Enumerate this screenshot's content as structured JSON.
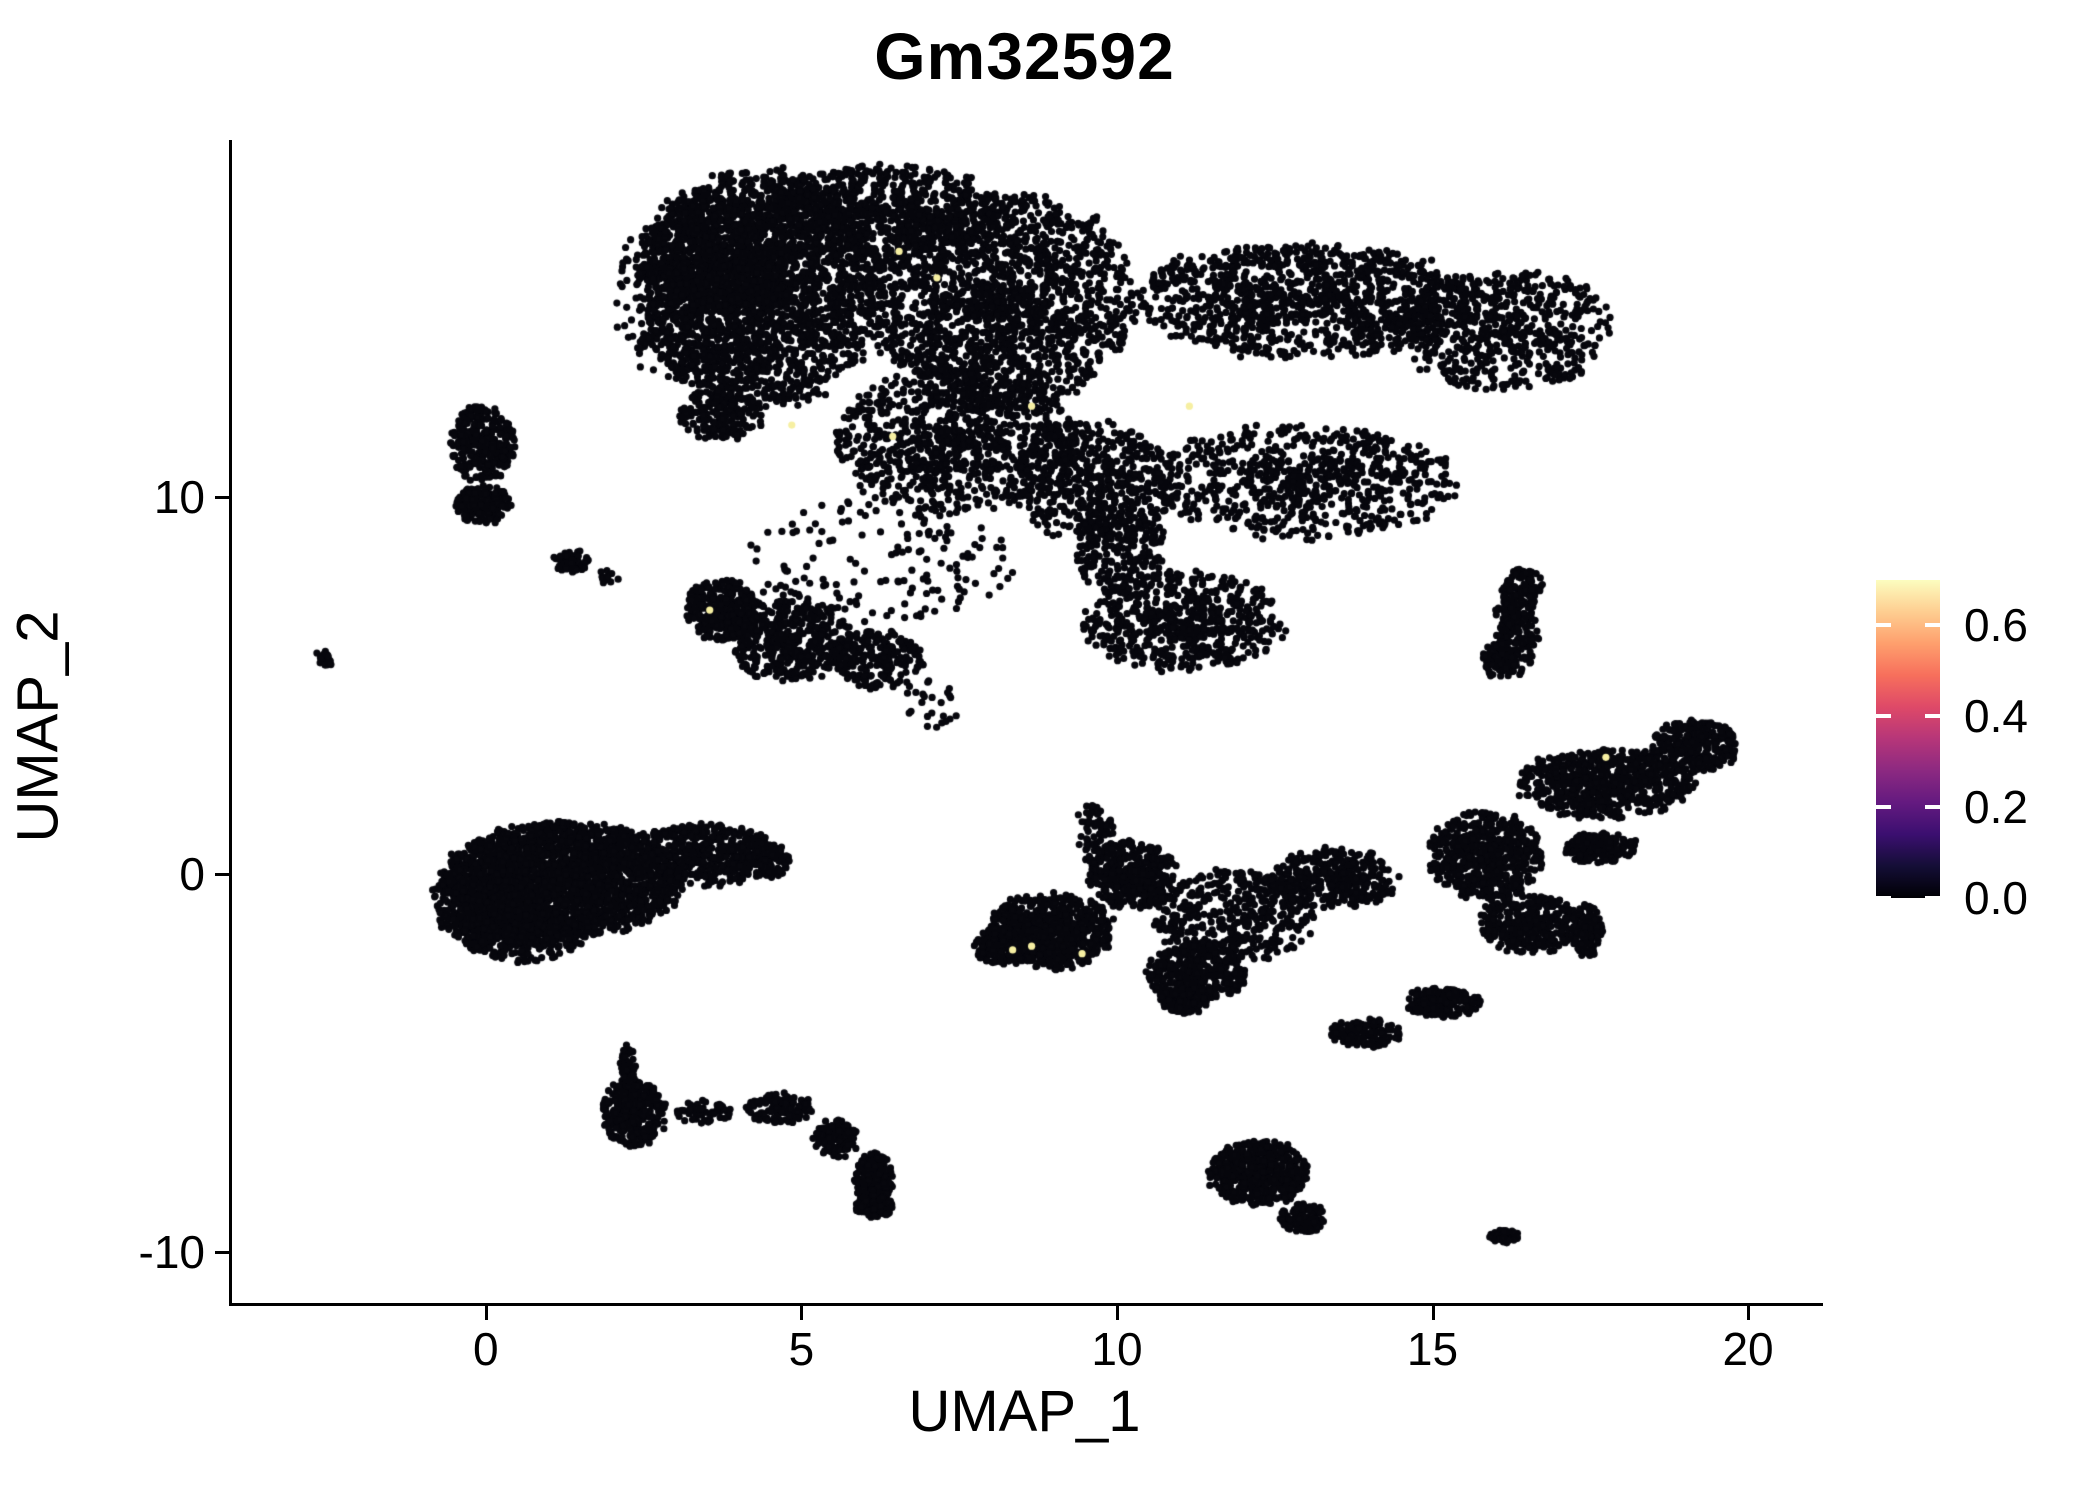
{
  "title": "Gm32592",
  "axes": {
    "x_label": "UMAP_1",
    "y_label": "UMAP_2"
  },
  "chart_data": {
    "type": "scatter",
    "title": "Gm32592",
    "xlabel": "UMAP_1",
    "ylabel": "UMAP_2",
    "xlim": [
      -4.07,
      21.14
    ],
    "ylim": [
      -11.35,
      19.45
    ],
    "x_ticks": [
      0,
      5,
      10,
      15,
      20
    ],
    "y_ticks": [
      10,
      0,
      -10
    ],
    "grid": false,
    "point_color_zero": "#07070d",
    "point_color_high": "#f6efa2",
    "legend": {
      "position": "right",
      "colormap": "magma",
      "range": [
        0.0,
        0.7
      ],
      "ticks": [
        0.0,
        0.2,
        0.4,
        0.6
      ],
      "tick_labels": [
        "0.0",
        "0.2",
        "0.4",
        "0.6"
      ],
      "stops": [
        {
          "v": 0.0,
          "color": "#000004"
        },
        {
          "v": 0.07,
          "color": "#140e36"
        },
        {
          "v": 0.14,
          "color": "#3b0f70"
        },
        {
          "v": 0.21,
          "color": "#641a80"
        },
        {
          "v": 0.28,
          "color": "#8c2981"
        },
        {
          "v": 0.35,
          "color": "#b63679"
        },
        {
          "v": 0.42,
          "color": "#de4968"
        },
        {
          "v": 0.49,
          "color": "#f76f5c"
        },
        {
          "v": 0.56,
          "color": "#fe9f6d"
        },
        {
          "v": 0.63,
          "color": "#fece91"
        },
        {
          "v": 0.7,
          "color": "#fcfdbf"
        }
      ]
    },
    "clusters": [
      {
        "name": "top-left-lobe-core",
        "x": 4.3,
        "y": 15.5,
        "rx": 1.9,
        "ry": 3.1,
        "n": 2600
      },
      {
        "name": "top-left-lobe-upper",
        "x": 3.4,
        "y": 16.5,
        "rx": 1.0,
        "ry": 1.6,
        "n": 500
      },
      {
        "name": "top-edge-band",
        "x": 6.2,
        "y": 17.6,
        "rx": 1.9,
        "ry": 1.2,
        "n": 700
      },
      {
        "name": "top-central-mass",
        "x": 8.1,
        "y": 15.2,
        "rx": 2.1,
        "ry": 2.9,
        "n": 1800
      },
      {
        "name": "top-lower-central",
        "x": 7.4,
        "y": 11.5,
        "rx": 1.9,
        "ry": 1.9,
        "n": 900
      },
      {
        "name": "top-lower-right",
        "x": 9.6,
        "y": 10.4,
        "rx": 1.3,
        "ry": 1.6,
        "n": 500
      },
      {
        "name": "top-right-band-upper",
        "x": 12.9,
        "y": 15.2,
        "rx": 2.7,
        "ry": 1.5,
        "n": 1100
      },
      {
        "name": "top-right-wedge-tip",
        "x": 16.1,
        "y": 14.4,
        "rx": 1.7,
        "ry": 1.6,
        "n": 600
      },
      {
        "name": "top-right-band-lower",
        "x": 12.9,
        "y": 10.4,
        "rx": 2.4,
        "ry": 1.5,
        "n": 700
      },
      {
        "name": "top-bottom-hook",
        "x": 11.0,
        "y": 6.7,
        "rx": 1.6,
        "ry": 1.3,
        "n": 600
      },
      {
        "name": "top-hook-neck",
        "x": 10.0,
        "y": 8.6,
        "rx": 0.7,
        "ry": 1.2,
        "n": 200
      },
      {
        "name": "top-left-protrusion",
        "x": 3.7,
        "y": 12.2,
        "rx": 0.7,
        "ry": 0.7,
        "n": 180
      },
      {
        "name": "top-left-fringe",
        "x": 2.7,
        "y": 15.2,
        "rx": 0.7,
        "ry": 2.0,
        "n": 120,
        "sparse": true
      },
      {
        "name": "top-bottom-fringe",
        "x": 6.2,
        "y": 8.3,
        "rx": 2.2,
        "ry": 1.6,
        "n": 160,
        "sparse": true
      },
      {
        "name": "right-squiggle-main",
        "x": 16.3,
        "y": 6.7,
        "rx": 0.35,
        "ry": 1.4,
        "n": 220
      },
      {
        "name": "right-squiggle-foot",
        "x": 16.0,
        "y": 5.7,
        "rx": 0.3,
        "ry": 0.5,
        "n": 80
      },
      {
        "name": "right-squiggle-head",
        "x": 16.4,
        "y": 7.7,
        "rx": 0.3,
        "ry": 0.4,
        "n": 60
      },
      {
        "name": "left-vertical-upper",
        "x": -0.1,
        "y": 11.4,
        "rx": 0.5,
        "ry": 1.0,
        "n": 320
      },
      {
        "name": "left-vertical-lower",
        "x": -0.1,
        "y": 9.8,
        "rx": 0.45,
        "ry": 0.5,
        "n": 180
      },
      {
        "name": "far-left-dash",
        "x": -2.6,
        "y": 5.7,
        "rx": 0.2,
        "ry": 0.2,
        "n": 25
      },
      {
        "name": "small-chain",
        "x": 1.3,
        "y": 8.3,
        "rx": 0.3,
        "ry": 0.3,
        "n": 60
      },
      {
        "name": "small-chain-tail",
        "x": 1.9,
        "y": 7.9,
        "rx": 0.2,
        "ry": 0.2,
        "n": 15
      },
      {
        "name": "mid-cluster-left",
        "x": 3.7,
        "y": 7.0,
        "rx": 0.6,
        "ry": 0.8,
        "n": 350
      },
      {
        "name": "mid-cluster-core",
        "x": 4.8,
        "y": 6.2,
        "rx": 1.0,
        "ry": 1.1,
        "n": 450
      },
      {
        "name": "mid-cluster-right",
        "x": 6.2,
        "y": 5.7,
        "rx": 0.7,
        "ry": 0.8,
        "n": 220
      },
      {
        "name": "mid-cluster-fringe",
        "x": 7.0,
        "y": 4.5,
        "rx": 0.5,
        "ry": 0.7,
        "n": 25,
        "sparse": true
      },
      {
        "name": "big-left-core",
        "x": 1.2,
        "y": -0.1,
        "rx": 1.9,
        "ry": 1.5,
        "n": 2200
      },
      {
        "name": "big-left-west",
        "x": -0.1,
        "y": -0.7,
        "rx": 0.8,
        "ry": 1.1,
        "n": 500
      },
      {
        "name": "big-left-arm",
        "x": 3.4,
        "y": 0.5,
        "rx": 1.3,
        "ry": 0.8,
        "n": 500
      },
      {
        "name": "big-left-arm-tip",
        "x": 4.3,
        "y": 0.4,
        "rx": 0.5,
        "ry": 0.5,
        "n": 150
      },
      {
        "name": "big-left-south",
        "x": 0.5,
        "y": -1.6,
        "rx": 1.0,
        "ry": 0.7,
        "n": 300
      },
      {
        "name": "bottom-left-round",
        "x": 2.3,
        "y": -6.3,
        "rx": 0.5,
        "ry": 0.9,
        "n": 380
      },
      {
        "name": "bottom-left-spike",
        "x": 2.2,
        "y": -5.1,
        "rx": 0.12,
        "ry": 0.6,
        "n": 50
      },
      {
        "name": "smile-sparse-start",
        "x": 3.4,
        "y": -6.3,
        "rx": 0.45,
        "ry": 0.3,
        "n": 60,
        "sparse": true
      },
      {
        "name": "smile-arc-1",
        "x": 4.6,
        "y": -6.2,
        "rx": 0.55,
        "ry": 0.4,
        "n": 120
      },
      {
        "name": "smile-arc-2",
        "x": 5.5,
        "y": -7.0,
        "rx": 0.4,
        "ry": 0.5,
        "n": 140
      },
      {
        "name": "smile-hook",
        "x": 6.1,
        "y": -8.1,
        "rx": 0.3,
        "ry": 0.75,
        "n": 220
      },
      {
        "name": "smile-hook-end",
        "x": 6.1,
        "y": -8.8,
        "rx": 0.3,
        "ry": 0.3,
        "n": 120
      },
      {
        "name": "ribbon-antenna",
        "x": 9.6,
        "y": 1.1,
        "rx": 0.3,
        "ry": 0.8,
        "n": 80
      },
      {
        "name": "ribbon-clump",
        "x": 10.2,
        "y": 0.0,
        "rx": 0.7,
        "ry": 0.9,
        "n": 400
      },
      {
        "name": "ribbon-left-wing",
        "x": 8.9,
        "y": -1.5,
        "rx": 1.0,
        "ry": 1.0,
        "n": 700
      },
      {
        "name": "ribbon-wing-tip",
        "x": 8.1,
        "y": -1.9,
        "rx": 0.4,
        "ry": 0.5,
        "n": 150
      },
      {
        "name": "ribbon-center-band",
        "x": 11.8,
        "y": -1.1,
        "rx": 1.3,
        "ry": 1.2,
        "n": 450,
        "sparse": true
      },
      {
        "name": "ribbon-bottom-clump",
        "x": 11.2,
        "y": -2.6,
        "rx": 0.8,
        "ry": 0.8,
        "n": 350
      },
      {
        "name": "ribbon-tail",
        "x": 11.0,
        "y": -3.3,
        "rx": 0.4,
        "ry": 0.4,
        "n": 120
      },
      {
        "name": "ribbon-bridge",
        "x": 13.4,
        "y": -0.1,
        "rx": 1.0,
        "ry": 0.8,
        "n": 350
      },
      {
        "name": "right-mass-top-arm",
        "x": 17.7,
        "y": 2.4,
        "rx": 1.4,
        "ry": 0.9,
        "n": 700
      },
      {
        "name": "right-mass-arm-tip",
        "x": 19.1,
        "y": 3.4,
        "rx": 0.7,
        "ry": 0.7,
        "n": 300
      },
      {
        "name": "right-mass-node",
        "x": 15.8,
        "y": 0.5,
        "rx": 0.9,
        "ry": 1.2,
        "n": 600
      },
      {
        "name": "right-mass-mid-arm",
        "x": 17.6,
        "y": 0.7,
        "rx": 0.6,
        "ry": 0.4,
        "n": 180
      },
      {
        "name": "right-mass-lower-hook",
        "x": 16.5,
        "y": -1.3,
        "rx": 0.8,
        "ry": 0.8,
        "n": 350
      },
      {
        "name": "right-mass-hook-tip",
        "x": 17.4,
        "y": -1.5,
        "rx": 0.25,
        "ry": 0.7,
        "n": 120
      },
      {
        "name": "elongated-dash-left",
        "x": 13.9,
        "y": -4.2,
        "rx": 0.55,
        "ry": 0.4,
        "n": 150
      },
      {
        "name": "elongated-dash-right",
        "x": 15.1,
        "y": -3.4,
        "rx": 0.6,
        "ry": 0.4,
        "n": 200
      },
      {
        "name": "bottom-oval",
        "x": 12.2,
        "y": -7.9,
        "rx": 0.8,
        "ry": 0.85,
        "n": 550
      },
      {
        "name": "bottom-oval-tail",
        "x": 12.9,
        "y": -9.1,
        "rx": 0.35,
        "ry": 0.4,
        "n": 120
      },
      {
        "name": "bottom-right-dash",
        "x": 16.1,
        "y": -9.6,
        "rx": 0.25,
        "ry": 0.2,
        "n": 40
      }
    ],
    "highlight_points": [
      {
        "x": 6.5,
        "y": 16.5
      },
      {
        "x": 7.1,
        "y": 15.8
      },
      {
        "x": 8.6,
        "y": 12.4
      },
      {
        "x": 11.1,
        "y": 12.4
      },
      {
        "x": 4.8,
        "y": 11.9
      },
      {
        "x": 6.4,
        "y": 11.6
      },
      {
        "x": 3.5,
        "y": 7.0
      },
      {
        "x": 8.3,
        "y": -2.0
      },
      {
        "x": 8.6,
        "y": -1.9
      },
      {
        "x": 9.4,
        "y": -2.1
      },
      {
        "x": 17.7,
        "y": 3.1
      }
    ]
  }
}
